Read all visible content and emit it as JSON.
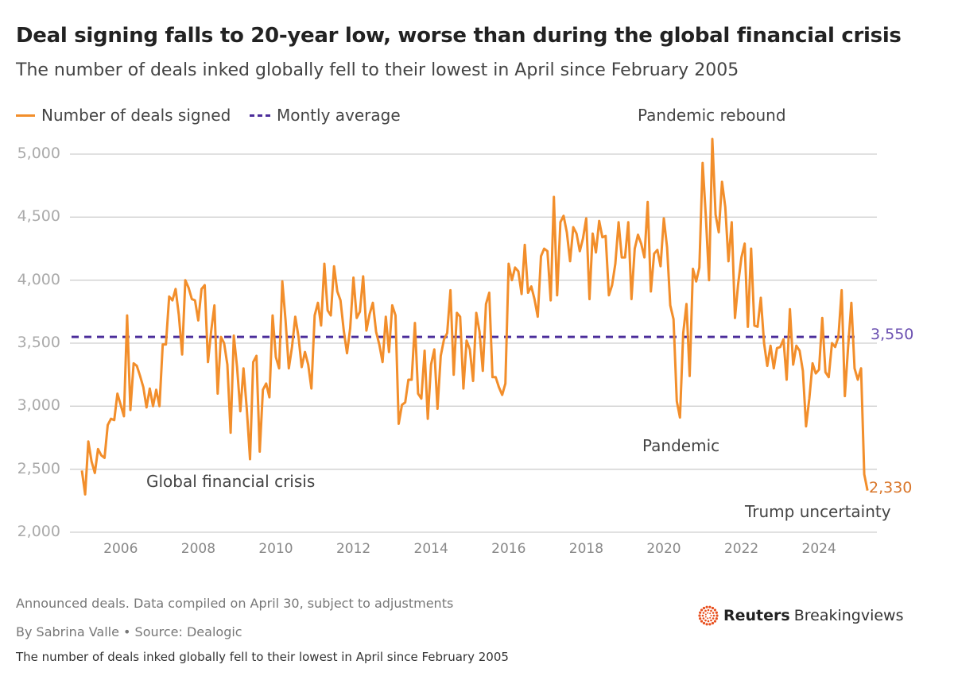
{
  "title": "Deal signing falls to 20-year low, worse than during the global financial crisis",
  "subtitle": "The number of deals inked globally fell to their lowest in April since February 2005",
  "footer": {
    "note": "Announced deals. Data compiled on April 30, subject to adjustments",
    "byline": "By Sabrina Valle • Source: Dealogic",
    "caption": "The number of deals inked globally fell to their lowest in April since February 2005",
    "logo_bold": "Reuters",
    "logo_light": "Breakingviews"
  },
  "chart_data": {
    "type": "line",
    "title": "Deal signing falls to 20-year low, worse than during the global financial crisis",
    "xlabel": "",
    "ylabel": "",
    "ylim": [
      2000,
      5200
    ],
    "yticks": [
      "2,000",
      "2,500",
      "3,000",
      "3,500",
      "4,000",
      "4,500",
      "5,000"
    ],
    "ytick_values": [
      2000,
      2500,
      3000,
      3500,
      4000,
      4500,
      5000
    ],
    "xticks": [
      "2006",
      "2008",
      "2010",
      "2012",
      "2014",
      "2016",
      "2018",
      "2020",
      "2022",
      "2024"
    ],
    "grid": true,
    "legend_position": "top-left",
    "start": "2005-01",
    "frequency": "monthly",
    "series": [
      {
        "name": "Number of deals signed",
        "color": "#f28e2b",
        "values": [
          2490,
          2300,
          2720,
          2560,
          2470,
          2660,
          2610,
          2590,
          2850,
          2900,
          2890,
          3100,
          3010,
          2920,
          3720,
          2970,
          3340,
          3320,
          3240,
          3150,
          2990,
          3140,
          3000,
          3130,
          3000,
          3490,
          3490,
          3870,
          3840,
          3930,
          3720,
          3410,
          4000,
          3940,
          3850,
          3840,
          3680,
          3930,
          3960,
          3350,
          3600,
          3800,
          3100,
          3550,
          3500,
          3330,
          2790,
          3560,
          3310,
          2960,
          3300,
          2980,
          2580,
          3350,
          3400,
          2640,
          3130,
          3180,
          3070,
          3720,
          3390,
          3300,
          3990,
          3680,
          3300,
          3470,
          3710,
          3550,
          3310,
          3430,
          3330,
          3140,
          3720,
          3820,
          3640,
          4130,
          3760,
          3720,
          4110,
          3910,
          3840,
          3600,
          3420,
          3620,
          4020,
          3700,
          3750,
          4030,
          3600,
          3730,
          3820,
          3590,
          3490,
          3350,
          3710,
          3430,
          3800,
          3720,
          2860,
          3010,
          3030,
          3210,
          3210,
          3660,
          3100,
          3060,
          3440,
          2900,
          3330,
          3450,
          2980,
          3400,
          3530,
          3580,
          3920,
          3250,
          3740,
          3710,
          3140,
          3520,
          3450,
          3200,
          3740,
          3590,
          3280,
          3810,
          3900,
          3230,
          3230,
          3150,
          3090,
          3180,
          4130,
          4000,
          4100,
          4070,
          3890,
          4280,
          3900,
          3950,
          3850,
          3710,
          4190,
          4250,
          4230,
          3840,
          4660,
          3880,
          4460,
          4510,
          4380,
          4150,
          4420,
          4370,
          4230,
          4330,
          4490,
          3850,
          4370,
          4220,
          4470,
          4340,
          4350,
          3880,
          3960,
          4130,
          4460,
          4180,
          4180,
          4460,
          3850,
          4250,
          4360,
          4290,
          4180,
          4620,
          3910,
          4210,
          4240,
          4110,
          4490,
          4260,
          3800,
          3690,
          3040,
          2910,
          3580,
          3810,
          3240,
          4090,
          3990,
          4100,
          4930,
          4500,
          4000,
          5120,
          4520,
          4380,
          4780,
          4580,
          4150,
          4460,
          3700,
          3970,
          4180,
          4290,
          3630,
          4250,
          3640,
          3630,
          3860,
          3500,
          3320,
          3480,
          3300,
          3460,
          3470,
          3530,
          3210,
          3770,
          3330,
          3480,
          3440,
          3280,
          2840,
          3060,
          3340,
          3260,
          3290,
          3700,
          3270,
          3230,
          3500,
          3470,
          3550,
          3920,
          3080,
          3470,
          3820,
          3300,
          3210,
          3300,
          2460,
          2330
        ]
      },
      {
        "name": "Montly average",
        "color": "#4b2d9a",
        "style": "dashed",
        "value": 3550
      }
    ],
    "annotations": [
      {
        "text": "Pandemic rebound"
      },
      {
        "text": "Global financial crisis"
      },
      {
        "text": "Pandemic"
      },
      {
        "text": "Trump uncertainty"
      }
    ],
    "labels": {
      "average": "3,550",
      "last": "2,330"
    }
  }
}
